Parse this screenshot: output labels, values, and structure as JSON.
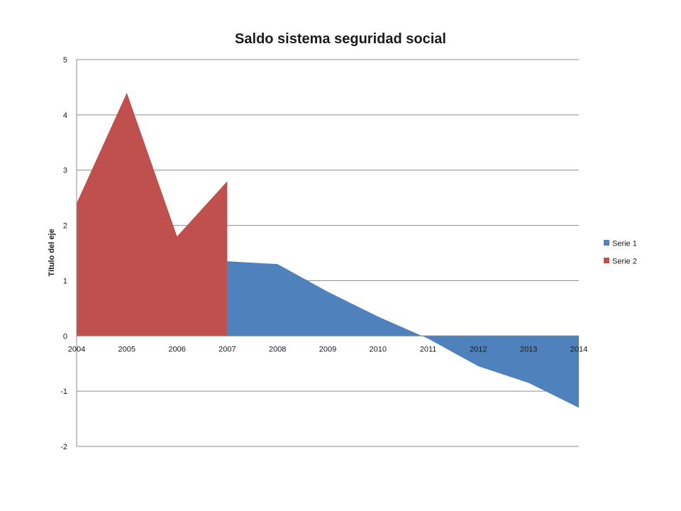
{
  "chart_data": {
    "type": "area",
    "title": "Saldo sistema seguridad social",
    "ylabel": "Título del eje",
    "xlabel": "",
    "categories": [
      "2004",
      "2005",
      "2006",
      "2007",
      "2008",
      "2009",
      "2010",
      "2011",
      "2012",
      "2013",
      "2014"
    ],
    "ylim": [
      -2,
      5
    ],
    "yticks": [
      "-2",
      "-1",
      "0",
      "1",
      "2",
      "3",
      "4",
      "5"
    ],
    "grid": true,
    "legend_position": "right",
    "series": [
      {
        "name": "Serie 1",
        "color": "#4f81bd",
        "values": [
          null,
          null,
          null,
          1.35,
          1.3,
          0.8,
          0.35,
          -0.05,
          -0.55,
          -0.85,
          -1.3
        ]
      },
      {
        "name": "Serie 2",
        "color": "#c0504d",
        "values": [
          2.4,
          4.4,
          1.8,
          2.8,
          null,
          null,
          null,
          null,
          null,
          null,
          null
        ]
      }
    ]
  }
}
